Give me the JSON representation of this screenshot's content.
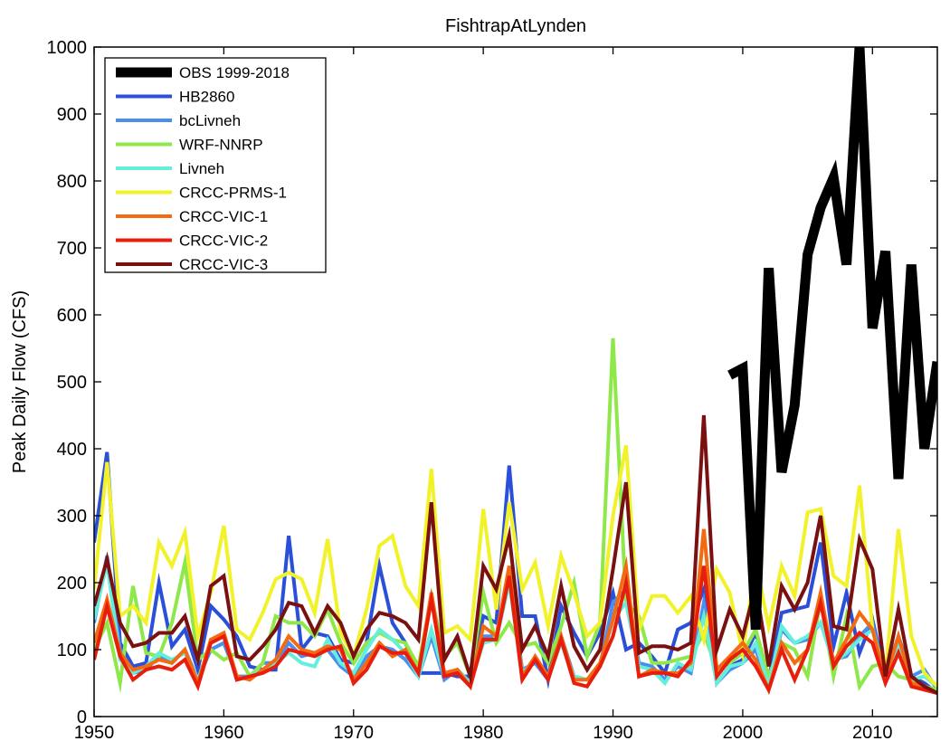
{
  "chart_data": {
    "type": "line",
    "title": "FishtrapAtLynden",
    "xlabel": "",
    "ylabel": "Peak Daily Flow (CFS)",
    "xlim": [
      1950,
      2015
    ],
    "ylim": [
      0,
      1000
    ],
    "xticks": [
      1950,
      1960,
      1970,
      1980,
      1990,
      2000,
      2010
    ],
    "yticks": [
      0,
      100,
      200,
      300,
      400,
      500,
      600,
      700,
      800,
      900,
      1000
    ],
    "grid": false,
    "legend_position": "top-left",
    "series": [
      {
        "name": "HB2860",
        "color": "#2a4fd8",
        "width": 4,
        "x_start": 1950,
        "values": [
          260,
          395,
          110,
          75,
          80,
          200,
          105,
          130,
          70,
          165,
          145,
          120,
          75,
          70,
          70,
          270,
          100,
          125,
          120,
          85,
          80,
          110,
          225,
          140,
          110,
          65,
          65,
          65,
          60,
          60,
          150,
          140,
          375,
          150,
          150,
          55,
          165,
          125,
          90,
          125,
          185,
          100,
          110,
          90,
          65,
          130,
          140,
          190,
          50,
          75,
          85,
          125,
          55,
          155,
          160,
          165,
          260,
          105,
          185,
          95,
          145,
          60,
          120,
          60,
          50,
          35
        ]
      },
      {
        "name": "bcLivneh",
        "color": "#4a8ef0",
        "width": 4,
        "x_start": 1950,
        "values": [
          140,
          240,
          100,
          65,
          70,
          90,
          80,
          100,
          55,
          100,
          110,
          60,
          60,
          80,
          80,
          110,
          90,
          95,
          100,
          75,
          60,
          90,
          105,
          100,
          85,
          60,
          120,
          55,
          70,
          50,
          120,
          120,
          210,
          70,
          80,
          55,
          120,
          60,
          55,
          75,
          170,
          190,
          80,
          75,
          55,
          75,
          65,
          170,
          50,
          70,
          80,
          100,
          45,
          130,
          110,
          115,
          140,
          85,
          90,
          120,
          140,
          55,
          110,
          60,
          70,
          40
        ]
      },
      {
        "name": "WRF-NNRP",
        "color": "#8ee84a",
        "width": 4,
        "x_start": 1950,
        "values": [
          100,
          140,
          50,
          195,
          95,
          90,
          140,
          230,
          85,
          100,
          85,
          95,
          60,
          80,
          150,
          140,
          140,
          120,
          160,
          110,
          80,
          110,
          125,
          115,
          110,
          75,
          180,
          90,
          110,
          60,
          185,
          110,
          140,
          105,
          110,
          80,
          135,
          200,
          90,
          140,
          565,
          170,
          150,
          80,
          80,
          85,
          90,
          125,
          70,
          80,
          95,
          130,
          60,
          110,
          100,
          60,
          175,
          60,
          150,
          45,
          75,
          80,
          60,
          55,
          45,
          40
        ]
      },
      {
        "name": "Livneh",
        "color": "#66eedd",
        "width": 4,
        "x_start": 1950,
        "values": [
          145,
          230,
          85,
          65,
          75,
          95,
          85,
          95,
          55,
          110,
          120,
          55,
          60,
          70,
          80,
          95,
          80,
          75,
          115,
          80,
          65,
          100,
          130,
          115,
          95,
          60,
          130,
          60,
          70,
          50,
          110,
          115,
          200,
          65,
          85,
          60,
          110,
          60,
          55,
          75,
          145,
          170,
          75,
          70,
          50,
          80,
          70,
          150,
          50,
          75,
          80,
          110,
          45,
          135,
          110,
          120,
          140,
          80,
          95,
          115,
          130,
          60,
          110,
          55,
          60,
          45
        ]
      },
      {
        "name": "CRCC-PRMS-1",
        "color": "#f2f22a",
        "width": 4,
        "x_start": 1950,
        "values": [
          190,
          380,
          150,
          165,
          140,
          260,
          225,
          275,
          120,
          185,
          285,
          130,
          115,
          155,
          205,
          215,
          205,
          155,
          265,
          125,
          90,
          160,
          255,
          270,
          195,
          165,
          370,
          125,
          135,
          115,
          310,
          160,
          320,
          190,
          230,
          135,
          240,
          185,
          120,
          140,
          300,
          405,
          130,
          180,
          180,
          155,
          180,
          115,
          220,
          185,
          95,
          230,
          135,
          225,
          180,
          305,
          310,
          210,
          195,
          345,
          130,
          60,
          280,
          120,
          65,
          45
        ]
      },
      {
        "name": "CRCC-VIC-1",
        "color": "#f46a12",
        "width": 4,
        "x_start": 1950,
        "values": [
          110,
          175,
          95,
          70,
          75,
          85,
          80,
          100,
          50,
          115,
          125,
          60,
          55,
          70,
          85,
          120,
          100,
          95,
          105,
          100,
          55,
          80,
          110,
          90,
          100,
          65,
          185,
          65,
          70,
          45,
          135,
          120,
          225,
          60,
          90,
          60,
          120,
          55,
          55,
          80,
          145,
          225,
          60,
          70,
          65,
          65,
          80,
          280,
          70,
          90,
          110,
          85,
          40,
          110,
          80,
          100,
          185,
          80,
          115,
          155,
          130,
          55,
          120,
          50,
          45,
          35
        ]
      },
      {
        "name": "CRCC-VIC-2",
        "color": "#e81e0c",
        "width": 4,
        "x_start": 1950,
        "values": [
          85,
          165,
          90,
          55,
          70,
          75,
          70,
          85,
          45,
          110,
          120,
          55,
          60,
          65,
          75,
          100,
          95,
          90,
          100,
          105,
          50,
          70,
          105,
          95,
          95,
          65,
          175,
          60,
          65,
          45,
          115,
          115,
          210,
          55,
          85,
          55,
          115,
          50,
          45,
          75,
          120,
          200,
          60,
          65,
          65,
          60,
          85,
          225,
          60,
          85,
          100,
          75,
          40,
          100,
          55,
          100,
          170,
          75,
          105,
          125,
          110,
          50,
          95,
          45,
          40,
          35
        ]
      },
      {
        "name": "CRCC-VIC-3",
        "color": "#7a1010",
        "width": 4,
        "x_start": 1950,
        "values": [
          165,
          235,
          140,
          105,
          110,
          125,
          125,
          150,
          85,
          195,
          210,
          90,
          85,
          105,
          130,
          170,
          165,
          125,
          165,
          140,
          90,
          130,
          155,
          150,
          140,
          115,
          320,
          85,
          120,
          60,
          225,
          190,
          270,
          100,
          135,
          90,
          195,
          105,
          70,
          100,
          220,
          350,
          95,
          105,
          105,
          100,
          110,
          450,
          100,
          160,
          120,
          195,
          75,
          195,
          160,
          200,
          300,
          135,
          130,
          265,
          220,
          60,
          160,
          60,
          45,
          35
        ]
      },
      {
        "name": "OBS 1999-2018",
        "color": "#000000",
        "width": 11,
        "x_start": 1999,
        "values": [
          510,
          520,
          130,
          670,
          365,
          465,
          690,
          760,
          805,
          675,
          1000,
          580,
          695,
          355,
          675,
          400,
          530
        ]
      }
    ]
  }
}
